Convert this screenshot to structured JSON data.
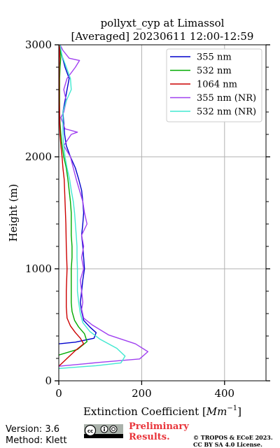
{
  "chart_data": {
    "type": "line",
    "title": "pollyxt_cyp at Limassol",
    "subtitle": "[Averaged] 20230611 12:00-12:59",
    "xlabel": "Extinction Coefficient",
    "xlabel_unit": "Mm",
    "xlabel_unit_exp": "−1",
    "ylabel": "Height (m)",
    "xlim": [
      0,
      500
    ],
    "ylim": [
      0,
      3000
    ],
    "xticks": [
      0,
      200,
      400
    ],
    "yticks": [
      0,
      1000,
      2000,
      3000
    ],
    "grid": true,
    "legend_position": "top-right",
    "series": [
      {
        "name": "355 nm",
        "color": "#0000cc",
        "points": [
          [
            0,
            330
          ],
          [
            40,
            345
          ],
          [
            85,
            380
          ],
          [
            90,
            430
          ],
          [
            75,
            480
          ],
          [
            60,
            540
          ],
          [
            55,
            620
          ],
          [
            52,
            700
          ],
          [
            55,
            800
          ],
          [
            58,
            900
          ],
          [
            62,
            1000
          ],
          [
            60,
            1100
          ],
          [
            58,
            1200
          ],
          [
            55,
            1300
          ],
          [
            58,
            1400
          ],
          [
            60,
            1500
          ],
          [
            58,
            1600
          ],
          [
            55,
            1700
          ],
          [
            48,
            1800
          ],
          [
            40,
            1900
          ],
          [
            28,
            2000
          ],
          [
            18,
            2100
          ],
          [
            14,
            2200
          ],
          [
            12,
            2300
          ],
          [
            10,
            2400
          ],
          [
            15,
            2500
          ],
          [
            20,
            2600
          ],
          [
            25,
            2700
          ],
          [
            15,
            2800
          ],
          [
            8,
            2900
          ],
          [
            0,
            3000
          ]
        ]
      },
      {
        "name": "532 nm",
        "color": "#00aa00",
        "points": [
          [
            0,
            230
          ],
          [
            45,
            280
          ],
          [
            68,
            350
          ],
          [
            62,
            420
          ],
          [
            48,
            480
          ],
          [
            38,
            540
          ],
          [
            32,
            620
          ],
          [
            30,
            700
          ],
          [
            30,
            800
          ],
          [
            30,
            900
          ],
          [
            30,
            1000
          ],
          [
            32,
            1100
          ],
          [
            32,
            1200
          ],
          [
            30,
            1300
          ],
          [
            30,
            1400
          ],
          [
            30,
            1500
          ],
          [
            28,
            1600
          ],
          [
            25,
            1700
          ],
          [
            22,
            1800
          ],
          [
            18,
            1900
          ],
          [
            12,
            2000
          ],
          [
            8,
            2100
          ],
          [
            5,
            2200
          ],
          [
            3,
            2300
          ],
          [
            2,
            2400
          ],
          [
            2,
            2500
          ],
          [
            2,
            2600
          ],
          [
            2,
            2700
          ],
          [
            3,
            2800
          ],
          [
            5,
            2900
          ],
          [
            3,
            3000
          ]
        ]
      },
      {
        "name": "1064 nm",
        "color": "#cc0000",
        "points": [
          [
            0,
            130
          ],
          [
            20,
            200
          ],
          [
            40,
            270
          ],
          [
            60,
            330
          ],
          [
            52,
            380
          ],
          [
            40,
            430
          ],
          [
            28,
            490
          ],
          [
            20,
            560
          ],
          [
            18,
            660
          ],
          [
            18,
            800
          ],
          [
            20,
            1000
          ],
          [
            18,
            1200
          ],
          [
            17,
            1400
          ],
          [
            15,
            1600
          ],
          [
            13,
            1800
          ],
          [
            10,
            1900
          ],
          [
            8,
            2000
          ],
          [
            5,
            2100
          ],
          [
            3,
            2200
          ],
          [
            2,
            2300
          ],
          [
            2,
            2400
          ],
          [
            1,
            2500
          ],
          [
            1,
            2600
          ],
          [
            1,
            2700
          ],
          [
            1,
            2800
          ],
          [
            2,
            2900
          ],
          [
            2,
            3000
          ]
        ]
      },
      {
        "name": "355 nm (NR)",
        "color": "#a040f0",
        "points": [
          [
            0,
            130
          ],
          [
            100,
            165
          ],
          [
            195,
            195
          ],
          [
            215,
            260
          ],
          [
            185,
            330
          ],
          [
            120,
            410
          ],
          [
            80,
            500
          ],
          [
            60,
            560
          ],
          [
            55,
            640
          ],
          [
            58,
            700
          ],
          [
            55,
            800
          ],
          [
            52,
            900
          ],
          [
            60,
            1000
          ],
          [
            55,
            1100
          ],
          [
            60,
            1200
          ],
          [
            55,
            1300
          ],
          [
            68,
            1400
          ],
          [
            62,
            1500
          ],
          [
            58,
            1600
          ],
          [
            50,
            1700
          ],
          [
            42,
            1800
          ],
          [
            35,
            1900
          ],
          [
            28,
            2000
          ],
          [
            20,
            2050
          ],
          [
            12,
            2100
          ],
          [
            30,
            2200
          ],
          [
            45,
            2220
          ],
          [
            15,
            2250
          ],
          [
            5,
            2350
          ],
          [
            12,
            2400
          ],
          [
            18,
            2500
          ],
          [
            12,
            2600
          ],
          [
            20,
            2700
          ],
          [
            40,
            2800
          ],
          [
            50,
            2860
          ],
          [
            25,
            2880
          ],
          [
            10,
            2950
          ],
          [
            3,
            3000
          ]
        ]
      },
      {
        "name": "532 nm (NR)",
        "color": "#40e8d0",
        "points": [
          [
            0,
            110
          ],
          [
            90,
            135
          ],
          [
            150,
            160
          ],
          [
            160,
            220
          ],
          [
            140,
            290
          ],
          [
            100,
            370
          ],
          [
            75,
            440
          ],
          [
            58,
            520
          ],
          [
            52,
            600
          ],
          [
            48,
            700
          ],
          [
            45,
            800
          ],
          [
            45,
            900
          ],
          [
            45,
            1000
          ],
          [
            44,
            1100
          ],
          [
            44,
            1200
          ],
          [
            42,
            1300
          ],
          [
            40,
            1400
          ],
          [
            38,
            1500
          ],
          [
            35,
            1600
          ],
          [
            30,
            1700
          ],
          [
            26,
            1800
          ],
          [
            20,
            1900
          ],
          [
            15,
            2000
          ],
          [
            12,
            2100
          ],
          [
            10,
            2200
          ],
          [
            10,
            2300
          ],
          [
            10,
            2400
          ],
          [
            18,
            2500
          ],
          [
            30,
            2600
          ],
          [
            28,
            2700
          ],
          [
            18,
            2800
          ],
          [
            8,
            2900
          ],
          [
            3,
            3000
          ]
        ]
      }
    ]
  },
  "footer": {
    "version": "Version: 3.6",
    "method": "Method: Klett",
    "preliminary_line1": "Preliminary",
    "preliminary_line2": "Results.",
    "copyright_line1": "© TROPOS & ECoE 2023.",
    "copyright_line2": "CC BY SA 4.0 License."
  }
}
